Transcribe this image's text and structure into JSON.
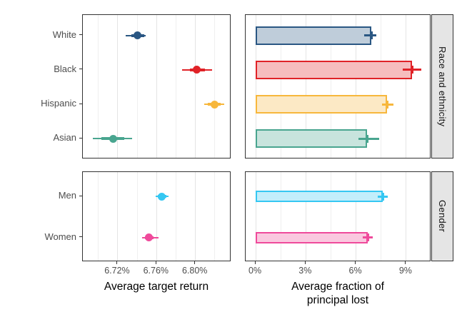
{
  "figure": {
    "background": "#FFFFFF",
    "panel_border_color": "#333333",
    "grid_major_color": "#E4E4E4",
    "grid_minor_color": "#EFEFEF",
    "strip_background": "#E5E5E5",
    "tick_label_color": "#4D4D4D",
    "axis_title_color": "#000000"
  },
  "facets": {
    "race": {
      "strip_label": "Race and ethnicity"
    },
    "gender": {
      "strip_label": "Gender"
    }
  },
  "axes": {
    "left_x_title": "Average target return",
    "right_x_title": "Average fraction of\nprincipal lost",
    "left_x_tick_labels": [
      "6.72%",
      "6.76%",
      "6.80%"
    ],
    "right_x_tick_labels": [
      "0%",
      "3%",
      "6%",
      "9%"
    ]
  },
  "chart_data": [
    {
      "id": "return-race",
      "type": "scatter",
      "subtype": "pointrange",
      "facet": "Race and ethnicity",
      "xlabel": "Average target return",
      "xlim": [
        6.684,
        6.837
      ],
      "x_major_ticks": [
        6.72,
        6.76,
        6.8
      ],
      "x_minor_ticks": [
        6.7,
        6.74,
        6.78,
        6.82
      ],
      "x_tick_labels": [],
      "categories": [
        "White",
        "Black",
        "Hispanic",
        "Asian"
      ],
      "series": [
        {
          "name": "White",
          "value": 6.74,
          "inner_ci": [
            6.734,
            6.747
          ],
          "outer_ci": [
            6.728,
            6.749
          ],
          "color": "#2A5783"
        },
        {
          "name": "Black",
          "value": 6.801,
          "inner_ci": [
            6.794,
            6.81
          ],
          "outer_ci": [
            6.786,
            6.817
          ],
          "color": "#E02227"
        },
        {
          "name": "Hispanic",
          "value": 6.82,
          "inner_ci": [
            6.813,
            6.826
          ],
          "outer_ci": [
            6.809,
            6.83
          ],
          "color": "#F7B73C"
        },
        {
          "name": "Asian",
          "value": 6.715,
          "inner_ci": [
            6.703,
            6.727
          ],
          "outer_ci": [
            6.694,
            6.735
          ],
          "color": "#49A58F"
        }
      ]
    },
    {
      "id": "loss-race",
      "type": "bar",
      "subtype": "horizontal-bar-with-errorbar",
      "facet": "Race and ethnicity",
      "xlabel": "Average fraction of principal lost",
      "xlim": [
        -0.6,
        10.5
      ],
      "x_major_ticks": [
        0,
        3,
        6,
        9
      ],
      "x_minor_ticks": [
        1.5,
        4.5,
        7.5
      ],
      "x_tick_labels": [],
      "categories": [
        "White",
        "Black",
        "Hispanic",
        "Asian"
      ],
      "series": [
        {
          "name": "White",
          "value": 6.9,
          "ci": [
            6.5,
            7.2
          ],
          "color": "#2A5783",
          "fill": "#BFCDDA"
        },
        {
          "name": "Black",
          "value": 9.35,
          "ci": [
            8.8,
            9.9
          ],
          "color": "#E02227",
          "fill": "#F6BDBE"
        },
        {
          "name": "Hispanic",
          "value": 7.85,
          "ci": [
            7.55,
            8.25
          ],
          "color": "#F7B73C",
          "fill": "#FCE9C5"
        },
        {
          "name": "Asian",
          "value": 6.65,
          "ci": [
            6.15,
            7.4
          ],
          "color": "#49A58F",
          "fill": "#C8E4DD"
        }
      ]
    },
    {
      "id": "return-gender",
      "type": "scatter",
      "subtype": "pointrange",
      "facet": "Gender",
      "xlabel": "Average target return",
      "xlim": [
        6.684,
        6.837
      ],
      "x_major_ticks": [
        6.72,
        6.76,
        6.8
      ],
      "x_minor_ticks": [
        6.7,
        6.74,
        6.78,
        6.82
      ],
      "x_tick_labels": [
        "6.72%",
        "6.76%",
        "6.80%"
      ],
      "categories": [
        "Men",
        "Women"
      ],
      "series": [
        {
          "name": "Men",
          "value": 6.765,
          "inner_ci": [
            6.761,
            6.77
          ],
          "outer_ci": [
            6.759,
            6.772
          ],
          "color": "#35C7F2"
        },
        {
          "name": "Women",
          "value": 6.752,
          "inner_ci": [
            6.748,
            6.757
          ],
          "outer_ci": [
            6.745,
            6.762
          ],
          "color": "#EF4A9B"
        }
      ]
    },
    {
      "id": "loss-gender",
      "type": "bar",
      "subtype": "horizontal-bar-with-errorbar",
      "facet": "Gender",
      "xlabel": "Average fraction of principal lost",
      "xlim": [
        -0.6,
        10.5
      ],
      "x_major_ticks": [
        0,
        3,
        6,
        9
      ],
      "x_minor_ticks": [
        1.5,
        4.5,
        7.5
      ],
      "x_tick_labels": [
        "0%",
        "3%",
        "6%",
        "9%"
      ],
      "categories": [
        "Men",
        "Women"
      ],
      "series": [
        {
          "name": "Men",
          "value": 7.6,
          "ci": [
            7.3,
            7.9
          ],
          "color": "#35C7F2",
          "fill": "#C2EEFB"
        },
        {
          "name": "Women",
          "value": 6.7,
          "ci": [
            6.4,
            7.0
          ],
          "color": "#EF4A9B",
          "fill": "#FAC8DF"
        }
      ]
    }
  ]
}
